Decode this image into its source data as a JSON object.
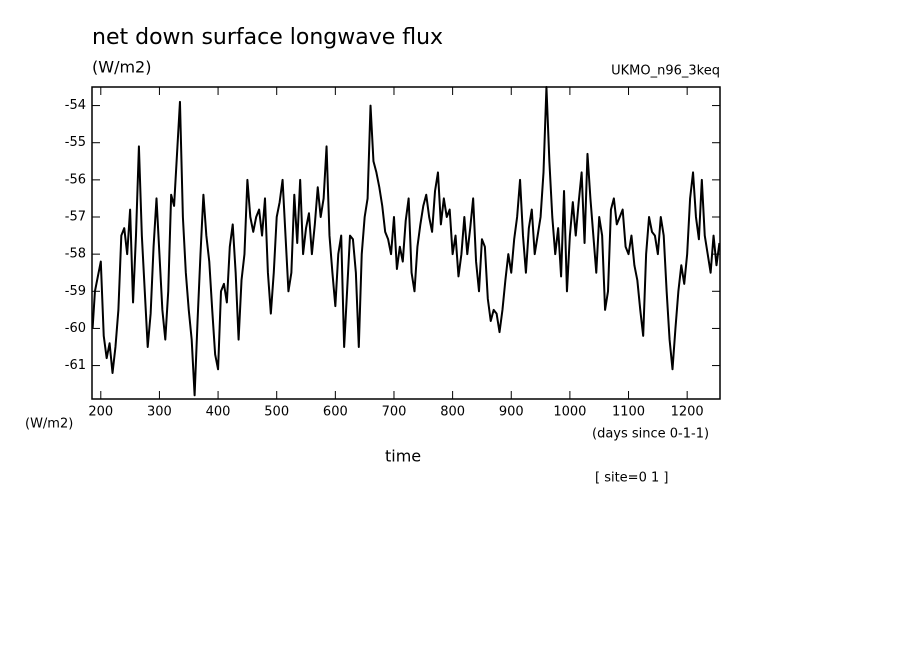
{
  "chart_data": {
    "type": "line",
    "title": "net down surface longwave flux",
    "y_label": "(W/m2)",
    "dataset": "UKMO_n96_3keq",
    "y_unit_label": "(W/m2)",
    "x_units": "(days since 0-1-1)",
    "x_label": "time",
    "annotation": "[ site=0 1 ]",
    "xlim": [
      185,
      1256
    ],
    "ylim": [
      -61.9,
      -53.5
    ],
    "xticks": [
      200,
      300,
      400,
      500,
      600,
      700,
      800,
      900,
      1000,
      1100,
      1200
    ],
    "yticks": [
      -54,
      -55,
      -56,
      -57,
      -58,
      -59,
      -60,
      -61
    ],
    "color": "#000000",
    "x": [
      186,
      190,
      195,
      200,
      205,
      210,
      215,
      220,
      225,
      230,
      235,
      240,
      245,
      250,
      255,
      260,
      265,
      270,
      275,
      280,
      285,
      290,
      295,
      300,
      305,
      310,
      315,
      320,
      325,
      330,
      335,
      340,
      345,
      350,
      355,
      360,
      365,
      370,
      375,
      380,
      385,
      390,
      395,
      400,
      405,
      410,
      415,
      420,
      425,
      430,
      435,
      440,
      445,
      450,
      455,
      460,
      465,
      470,
      475,
      480,
      485,
      490,
      495,
      500,
      505,
      510,
      515,
      520,
      525,
      530,
      535,
      540,
      545,
      550,
      555,
      560,
      565,
      570,
      575,
      580,
      585,
      590,
      595,
      600,
      605,
      610,
      615,
      620,
      625,
      630,
      635,
      640,
      645,
      650,
      655,
      660,
      665,
      670,
      675,
      680,
      685,
      690,
      695,
      700,
      705,
      710,
      715,
      720,
      725,
      730,
      735,
      740,
      745,
      750,
      755,
      760,
      765,
      770,
      775,
      780,
      785,
      790,
      795,
      800,
      805,
      810,
      815,
      820,
      825,
      830,
      835,
      840,
      845,
      850,
      855,
      860,
      865,
      870,
      875,
      880,
      885,
      890,
      895,
      900,
      905,
      910,
      915,
      920,
      925,
      930,
      935,
      940,
      945,
      950,
      955,
      960,
      965,
      970,
      975,
      980,
      985,
      990,
      995,
      1000,
      1005,
      1010,
      1015,
      1020,
      1025,
      1030,
      1035,
      1040,
      1045,
      1050,
      1055,
      1060,
      1065,
      1070,
      1075,
      1080,
      1085,
      1090,
      1095,
      1100,
      1105,
      1110,
      1115,
      1120,
      1125,
      1130,
      1135,
      1140,
      1145,
      1150,
      1155,
      1160,
      1165,
      1170,
      1175,
      1180,
      1185,
      1190,
      1195,
      1200,
      1205,
      1210,
      1215,
      1220,
      1225,
      1230,
      1235,
      1240,
      1245,
      1250,
      1255
    ],
    "values": [
      -60.0,
      -59.0,
      -58.6,
      -58.2,
      -60.2,
      -60.8,
      -60.4,
      -61.2,
      -60.5,
      -59.5,
      -57.5,
      -57.3,
      -58.0,
      -56.8,
      -59.3,
      -57.5,
      -55.1,
      -57.5,
      -59.0,
      -60.5,
      -59.6,
      -57.8,
      -56.5,
      -58.0,
      -59.5,
      -60.3,
      -59.0,
      -56.4,
      -56.7,
      -55.3,
      -53.9,
      -57.0,
      -58.5,
      -59.5,
      -60.3,
      -61.8,
      -59.8,
      -58.0,
      -56.4,
      -57.5,
      -58.2,
      -59.5,
      -60.7,
      -61.1,
      -59.0,
      -58.8,
      -59.3,
      -57.8,
      -57.2,
      -58.5,
      -60.3,
      -58.7,
      -58.0,
      -56.0,
      -57.0,
      -57.4,
      -57.0,
      -56.8,
      -57.5,
      -56.5,
      -58.5,
      -59.6,
      -58.5,
      -57.0,
      -56.6,
      -56.0,
      -57.5,
      -59.0,
      -58.5,
      -56.4,
      -57.7,
      -56.0,
      -58.0,
      -57.3,
      -56.9,
      -58.0,
      -57.2,
      -56.2,
      -57.0,
      -56.5,
      -55.1,
      -57.5,
      -58.5,
      -59.4,
      -58.0,
      -57.5,
      -60.5,
      -59.0,
      -57.5,
      -57.6,
      -58.5,
      -60.5,
      -58.0,
      -57.0,
      -56.5,
      -54.0,
      -55.5,
      -55.8,
      -56.2,
      -56.7,
      -57.4,
      -57.6,
      -58.0,
      -57.0,
      -58.4,
      -57.8,
      -58.2,
      -57.1,
      -56.5,
      -58.5,
      -59.0,
      -57.8,
      -57.2,
      -56.7,
      -56.4,
      -57.0,
      -57.4,
      -56.3,
      -55.8,
      -57.2,
      -56.5,
      -57.0,
      -56.8,
      -58.0,
      -57.5,
      -58.6,
      -58.0,
      -57.0,
      -58.0,
      -57.3,
      -56.5,
      -58.2,
      -59.0,
      -57.6,
      -57.8,
      -59.2,
      -59.8,
      -59.5,
      -59.6,
      -60.1,
      -59.5,
      -58.7,
      -58.0,
      -58.5,
      -57.6,
      -57.0,
      -56.0,
      -57.5,
      -58.5,
      -57.3,
      -56.8,
      -58.0,
      -57.5,
      -57.0,
      -55.8,
      -53.5,
      -55.5,
      -57.0,
      -58.0,
      -57.3,
      -58.6,
      -56.3,
      -59.0,
      -57.5,
      -56.6,
      -57.5,
      -56.6,
      -55.8,
      -57.7,
      -55.3,
      -56.5,
      -57.5,
      -58.5,
      -57.0,
      -57.5,
      -59.5,
      -59.0,
      -56.8,
      -56.5,
      -57.2,
      -57.0,
      -56.8,
      -57.8,
      -58.0,
      -57.5,
      -58.3,
      -58.7,
      -59.5,
      -60.2,
      -58.0,
      -57.0,
      -57.4,
      -57.5,
      -58.0,
      -57.0,
      -57.5,
      -59.0,
      -60.3,
      -61.1,
      -60.0,
      -59.0,
      -58.3,
      -58.8,
      -58.0,
      -56.5,
      -55.8,
      -57.0,
      -57.6,
      -56.0,
      -57.5,
      -58.0,
      -58.5,
      -57.5,
      -58.3,
      -57.7
    ]
  }
}
